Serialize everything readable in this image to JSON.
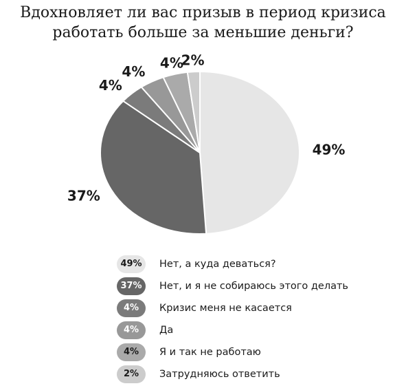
{
  "title_lines": [
    "Вдохновляет ли вас призыв в период кризиса",
    "работать больше за меньшие деньги?"
  ],
  "chart_data": {
    "type": "pie",
    "title": "Вдохновляет ли вас призыв в период кризиса работать больше за меньшие деньги?",
    "legend_position": "bottom",
    "slices": [
      {
        "label": "Нет, а куда деваться?",
        "value": 49,
        "value_label": "49%",
        "color": "#e6e6e6",
        "text_color": "#1a1a1a"
      },
      {
        "label": "Нет, и я не собираюсь этого делать",
        "value": 37,
        "value_label": "37%",
        "color": "#666666",
        "text_color": "#ffffff"
      },
      {
        "label": "Кризис меня не касается",
        "value": 4,
        "value_label": "4%",
        "color": "#7b7b7b",
        "text_color": "#ffffff"
      },
      {
        "label": "Да",
        "value": 4,
        "value_label": "4%",
        "color": "#989898",
        "text_color": "#ffffff"
      },
      {
        "label": "Я и так не работаю",
        "value": 4,
        "value_label": "4%",
        "color": "#aaaaaa",
        "text_color": "#1a1a1a"
      },
      {
        "label": "Затрудняюсь ответить",
        "value": 2,
        "value_label": "2%",
        "color": "#cccccc",
        "text_color": "#1a1a1a"
      }
    ]
  }
}
